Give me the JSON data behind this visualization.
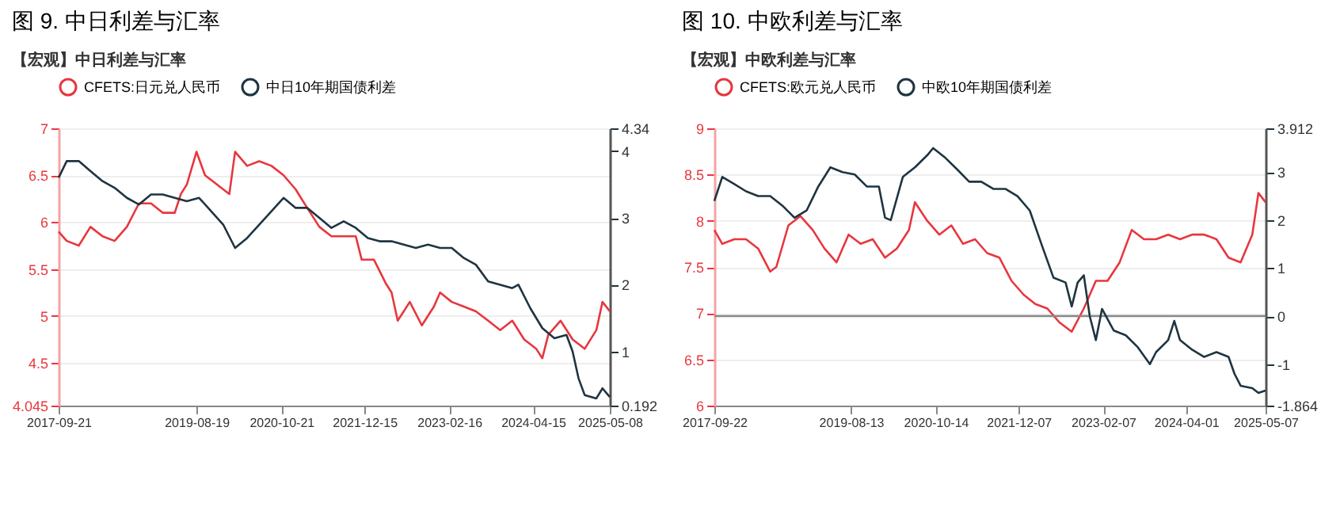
{
  "chart_data": [
    {
      "type": "line",
      "title": "图 9.  中日利差与汇率",
      "subtitle": "【宏观】中日利差与汇率",
      "legend": "top",
      "grid": "y",
      "xlim": [
        "2017-09-21",
        "2025-05-08"
      ],
      "xticks": [
        "2017-09-21",
        "2019-08-19",
        "2020-10-21",
        "2021-12-15",
        "2023-02-16",
        "2024-04-15",
        "2025-05-08"
      ],
      "ylim": [
        4.045,
        7
      ],
      "yticks": [
        4.045,
        4.5,
        5,
        5.5,
        6,
        6.5,
        7
      ],
      "y2lim": [
        0.192,
        4.34
      ],
      "y2ticks": [
        0.192,
        1,
        2,
        3,
        4,
        4.34
      ],
      "series": [
        {
          "name": "CFETS:日元兑人民币",
          "color": "#e8363e",
          "x": [
            "2017-09-21",
            "2017-11",
            "2018-01",
            "2018-03",
            "2018-05",
            "2018-07",
            "2018-09",
            "2018-11",
            "2019-01",
            "2019-03",
            "2019-05",
            "2019-06",
            "2019-07",
            "2019-08-19",
            "2019-10",
            "2019-12",
            "2020-02",
            "2020-03",
            "2020-05",
            "2020-07",
            "2020-09",
            "2020-11",
            "2021-01",
            "2021-03",
            "2021-05",
            "2021-07",
            "2021-09",
            "2021-11",
            "2021-12",
            "2022-02",
            "2022-04",
            "2022-05",
            "2022-06",
            "2022-08",
            "2022-10",
            "2022-12",
            "2023-01",
            "2023-03",
            "2023-05",
            "2023-07",
            "2023-09",
            "2023-11",
            "2024-01",
            "2024-03",
            "2024-05",
            "2024-06",
            "2024-07",
            "2024-09",
            "2024-11",
            "2025-01",
            "2025-03",
            "2025-04",
            "2025-05-08"
          ],
          "values": [
            5.9,
            5.8,
            5.75,
            5.95,
            5.85,
            5.8,
            5.95,
            6.2,
            6.2,
            6.1,
            6.1,
            6.3,
            6.4,
            6.75,
            6.5,
            6.4,
            6.3,
            6.75,
            6.6,
            6.65,
            6.6,
            6.5,
            6.35,
            6.15,
            5.95,
            5.85,
            5.85,
            5.85,
            5.6,
            5.6,
            5.35,
            5.25,
            4.95,
            5.15,
            4.9,
            5.1,
            5.25,
            5.15,
            5.1,
            5.05,
            4.95,
            4.85,
            4.95,
            4.75,
            4.65,
            4.55,
            4.8,
            4.95,
            4.75,
            4.65,
            4.85,
            5.15,
            5.05
          ]
        },
        {
          "name": "中日10年期国债利差",
          "color": "#1f3440",
          "axis": "y2",
          "x": [
            "2017-09-21",
            "2017-11",
            "2018-01",
            "2018-03",
            "2018-05",
            "2018-07",
            "2018-09",
            "2018-11",
            "2019-01",
            "2019-03",
            "2019-05",
            "2019-07",
            "2019-09",
            "2019-11",
            "2020-01",
            "2020-03",
            "2020-05",
            "2020-07",
            "2020-09",
            "2020-11",
            "2021-01",
            "2021-03",
            "2021-05",
            "2021-07",
            "2021-09",
            "2021-11",
            "2022-01",
            "2022-03",
            "2022-05",
            "2022-07",
            "2022-09",
            "2022-11",
            "2023-01",
            "2023-03",
            "2023-05",
            "2023-07",
            "2023-09",
            "2023-11",
            "2024-01",
            "2024-02",
            "2024-04",
            "2024-06",
            "2024-08",
            "2024-10",
            "2024-11",
            "2024-12",
            "2025-01",
            "2025-03",
            "2025-04",
            "2025-05-08"
          ],
          "values": [
            3.6,
            3.85,
            3.85,
            3.7,
            3.55,
            3.45,
            3.3,
            3.2,
            3.35,
            3.35,
            3.3,
            3.25,
            3.3,
            3.1,
            2.9,
            2.55,
            2.7,
            2.9,
            3.1,
            3.3,
            3.15,
            3.15,
            3.0,
            2.85,
            2.95,
            2.85,
            2.7,
            2.65,
            2.65,
            2.6,
            2.55,
            2.6,
            2.55,
            2.55,
            2.4,
            2.3,
            2.05,
            2.0,
            1.95,
            2.0,
            1.65,
            1.35,
            1.2,
            1.25,
            1.0,
            0.6,
            0.35,
            0.3,
            0.45,
            0.32
          ]
        }
      ]
    },
    {
      "type": "line",
      "title": "图 10.  中欧利差与汇率",
      "subtitle": "【宏观】中欧利差与汇率",
      "legend": "top",
      "grid": "y",
      "xlim": [
        "2017-09-22",
        "2025-05-07"
      ],
      "xticks": [
        "2017-09-22",
        "2019-08-13",
        "2020-10-14",
        "2021-12-07",
        "2023-02-07",
        "2024-04-01",
        "2025-05-07"
      ],
      "ylim": [
        6,
        9
      ],
      "yticks": [
        6,
        6.5,
        7,
        7.5,
        8,
        8.5,
        9
      ],
      "y2lim": [
        -1.864,
        3.912
      ],
      "y2ticks": [
        -1.864,
        -1,
        0,
        1,
        2,
        3,
        3.912
      ],
      "ref_lines": [
        {
          "axis": "y2",
          "value": 0,
          "label": null,
          "color": "#888888"
        }
      ],
      "series": [
        {
          "name": "CFETS:欧元兑人民币",
          "color": "#e8363e",
          "x": [
            "2017-09-22",
            "2017-11",
            "2018-01",
            "2018-03",
            "2018-05",
            "2018-07",
            "2018-08",
            "2018-10",
            "2018-12",
            "2019-02",
            "2019-04",
            "2019-06",
            "2019-08",
            "2019-10",
            "2019-12",
            "2020-02",
            "2020-04",
            "2020-06",
            "2020-07",
            "2020-09",
            "2020-11",
            "2021-01",
            "2021-03",
            "2021-05",
            "2021-07",
            "2021-09",
            "2021-11",
            "2022-01",
            "2022-03",
            "2022-05",
            "2022-07",
            "2022-09",
            "2022-11",
            "2023-01",
            "2023-03",
            "2023-05",
            "2023-07",
            "2023-09",
            "2023-11",
            "2024-01",
            "2024-03",
            "2024-05",
            "2024-07",
            "2024-09",
            "2024-11",
            "2025-01",
            "2025-03",
            "2025-04",
            "2025-05-07"
          ],
          "values": [
            7.9,
            7.75,
            7.8,
            7.8,
            7.7,
            7.45,
            7.5,
            7.95,
            8.05,
            7.9,
            7.7,
            7.55,
            7.85,
            7.75,
            7.8,
            7.6,
            7.7,
            7.9,
            8.2,
            8.0,
            7.85,
            7.95,
            7.75,
            7.8,
            7.65,
            7.6,
            7.35,
            7.2,
            7.1,
            7.05,
            6.9,
            6.8,
            7.05,
            7.35,
            7.35,
            7.55,
            7.9,
            7.8,
            7.8,
            7.85,
            7.8,
            7.85,
            7.85,
            7.8,
            7.6,
            7.55,
            7.85,
            8.3,
            8.2
          ]
        },
        {
          "name": "中欧10年期国债利差",
          "color": "#1f3440",
          "axis": "y2",
          "x": [
            "2017-09-22",
            "2017-11",
            "2018-01",
            "2018-03",
            "2018-05",
            "2018-07",
            "2018-09",
            "2018-11",
            "2019-01",
            "2019-03",
            "2019-05",
            "2019-07",
            "2019-09",
            "2019-11",
            "2020-01",
            "2020-02",
            "2020-03",
            "2020-05",
            "2020-07",
            "2020-09",
            "2020-10",
            "2020-12",
            "2021-02",
            "2021-04",
            "2021-06",
            "2021-08",
            "2021-10",
            "2021-12",
            "2022-02",
            "2022-04",
            "2022-06",
            "2022-08",
            "2022-09",
            "2022-10",
            "2022-11",
            "2022-12",
            "2023-01",
            "2023-02",
            "2023-04",
            "2023-06",
            "2023-08",
            "2023-10",
            "2023-11",
            "2024-01",
            "2024-02",
            "2024-03",
            "2024-05",
            "2024-07",
            "2024-09",
            "2024-11",
            "2024-12",
            "2025-01",
            "2025-03",
            "2025-04",
            "2025-05-07"
          ],
          "values": [
            2.4,
            2.9,
            2.75,
            2.6,
            2.5,
            2.5,
            2.3,
            2.05,
            2.2,
            2.7,
            3.1,
            3.0,
            2.95,
            2.7,
            2.7,
            2.05,
            2.0,
            2.9,
            3.1,
            3.35,
            3.5,
            3.3,
            3.05,
            2.8,
            2.8,
            2.65,
            2.65,
            2.5,
            2.2,
            1.5,
            0.8,
            0.7,
            0.2,
            0.7,
            0.85,
            0.0,
            -0.5,
            0.15,
            -0.3,
            -0.4,
            -0.65,
            -1.0,
            -0.75,
            -0.5,
            -0.1,
            -0.5,
            -0.7,
            -0.85,
            -0.75,
            -0.85,
            -1.2,
            -1.45,
            -1.5,
            -1.6,
            -1.55
          ]
        }
      ]
    }
  ]
}
